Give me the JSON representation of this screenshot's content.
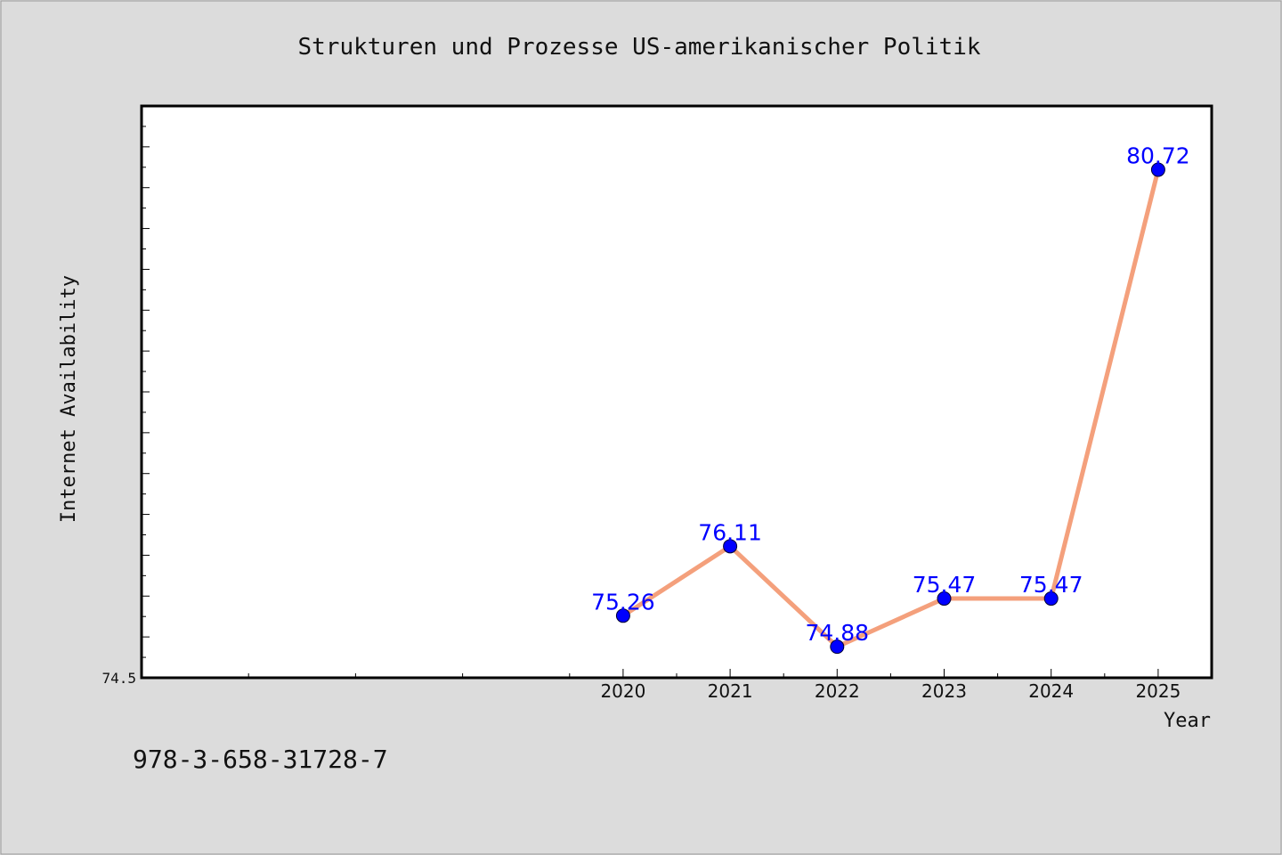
{
  "chart_data": {
    "type": "line",
    "title": "Strukturen und Prozesse US-amerikanischer Politik",
    "xlabel": "Year",
    "ylabel": "Internet Availability",
    "x": [
      "2020",
      "2021",
      "2022",
      "2023",
      "2024",
      "2025"
    ],
    "series": [
      {
        "values": [
          75.26,
          76.11,
          74.88,
          75.47,
          75.47,
          80.72
        ],
        "labels": [
          "75.26",
          "76.11",
          "74.88",
          "75.47",
          "75.47",
          "80.72"
        ]
      }
    ],
    "x_domain": [
      2015.5,
      2025.5
    ],
    "ylim": [
      74.5,
      81.5
    ],
    "y_tick_labels": [
      "74.5"
    ],
    "grid": false,
    "legend": "none",
    "colors": {
      "line": "#f4a07c",
      "marker": "#0000ff",
      "data_label": "#0000ff",
      "plot_bg": "#ffffff",
      "page_bg": "#dcdcdc"
    }
  },
  "footer": {
    "isbn": "978-3-658-31728-7"
  }
}
